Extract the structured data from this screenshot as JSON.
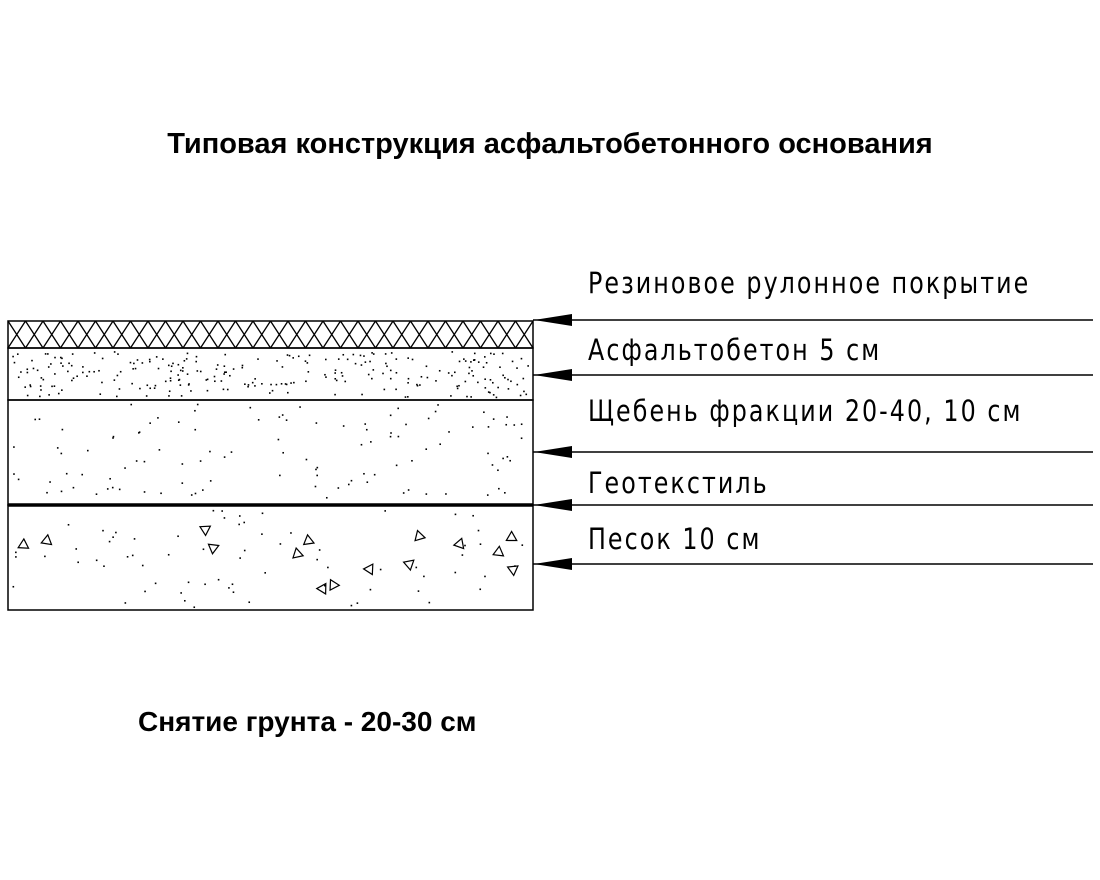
{
  "title": "Типовая конструкция асфальтобетонного основания",
  "layers": [
    {
      "label": "Резиновое рулонное покрытие",
      "hatch": "crosshatch"
    },
    {
      "label": "Асфальтобетон 5 см",
      "hatch": "fine-stipple"
    },
    {
      "label": "Щебень фракции 20-40, 10 см",
      "hatch": "sparse-stipple"
    },
    {
      "label": "Геотекстиль",
      "hatch": "thick-line"
    },
    {
      "label": "Песок 10 см",
      "hatch": "stipple-triangles"
    }
  ],
  "note": "Снятие грунта - 20-30 см",
  "colors": {
    "ink": "#000000",
    "background": "#ffffff"
  }
}
